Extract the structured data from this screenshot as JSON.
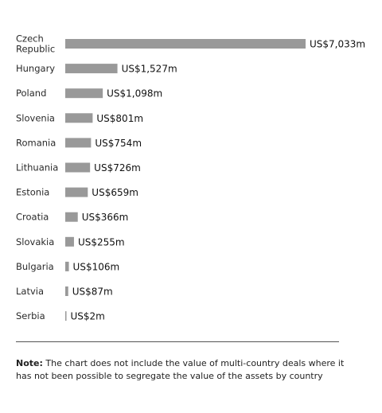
{
  "chart_data": {
    "type": "bar",
    "orientation": "horizontal",
    "categories": [
      "Czech Republic",
      "Hungary",
      "Poland",
      "Slovenia",
      "Romania",
      "Lithuania",
      "Estonia",
      "Croatia",
      "Slovakia",
      "Bulgaria",
      "Latvia",
      "Serbia"
    ],
    "category_lines": [
      [
        "Czech",
        "Republic"
      ],
      [
        "Hungary"
      ],
      [
        "Poland"
      ],
      [
        "Slovenia"
      ],
      [
        "Romania"
      ],
      [
        "Lithuania"
      ],
      [
        "Estonia"
      ],
      [
        "Croatia"
      ],
      [
        "Slovakia"
      ],
      [
        "Bulgaria"
      ],
      [
        "Latvia"
      ],
      [
        "Serbia"
      ]
    ],
    "values": [
      7033,
      1527,
      1098,
      801,
      754,
      726,
      659,
      366,
      255,
      106,
      87,
      2
    ],
    "value_labels": [
      "US$7,033m",
      "US$1,527m",
      "US$1,098m",
      "US$801m",
      "US$754m",
      "US$726m",
      "US$659m",
      "US$366m",
      "US$255m",
      "US$106m",
      "US$87m",
      "US$2m"
    ],
    "bar_color": "#999999",
    "grid": false
  },
  "note": {
    "label": "Note:",
    "text": " The chart does not include the value of multi-country deals where it has not been possible to segregate the value of the assets by country"
  }
}
